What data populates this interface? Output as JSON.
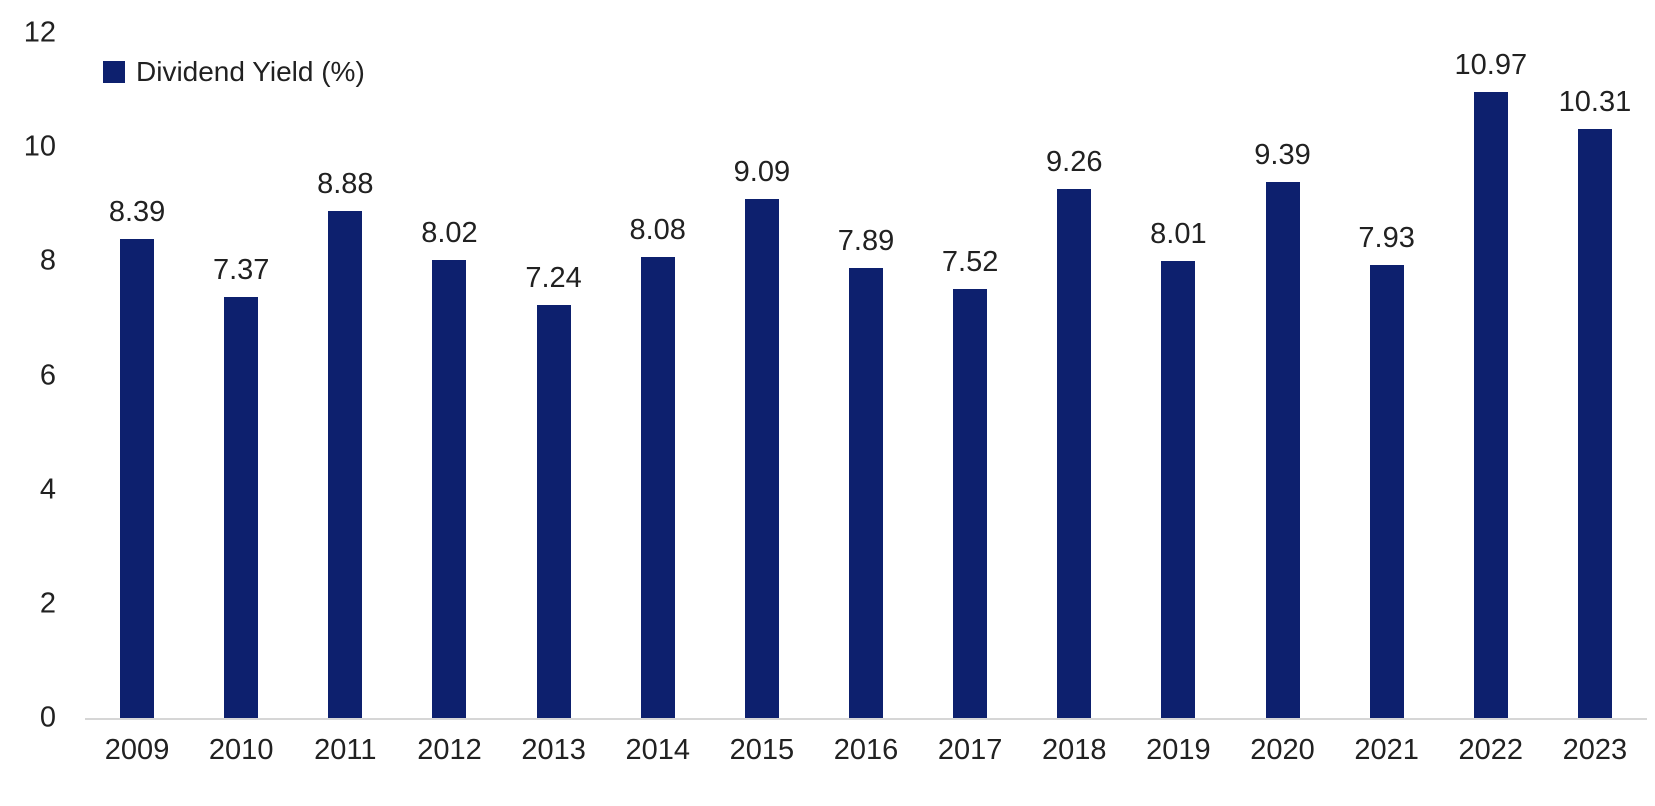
{
  "chart": {
    "legend_label": "Dividend Yield (%)",
    "colors": {
      "bar": "#0D206E",
      "axis_line": "#D6D6D6",
      "text": "#212121"
    }
  },
  "chart_data": {
    "type": "bar",
    "title": "",
    "xlabel": "",
    "ylabel": "",
    "categories": [
      "2009",
      "2010",
      "2011",
      "2012",
      "2013",
      "2014",
      "2015",
      "2016",
      "2017",
      "2018",
      "2019",
      "2020",
      "2021",
      "2022",
      "2023"
    ],
    "series": [
      {
        "name": "Dividend Yield (%)",
        "values": [
          8.39,
          7.37,
          8.88,
          8.02,
          7.24,
          8.08,
          9.09,
          7.89,
          7.52,
          9.26,
          8.01,
          9.39,
          7.93,
          10.97,
          10.31
        ]
      }
    ],
    "ylim": [
      0,
      12
    ],
    "yticks": [
      0,
      2,
      4,
      6,
      8,
      10,
      12
    ],
    "grid": false,
    "data_labels": true,
    "legend_position": "top-left"
  }
}
